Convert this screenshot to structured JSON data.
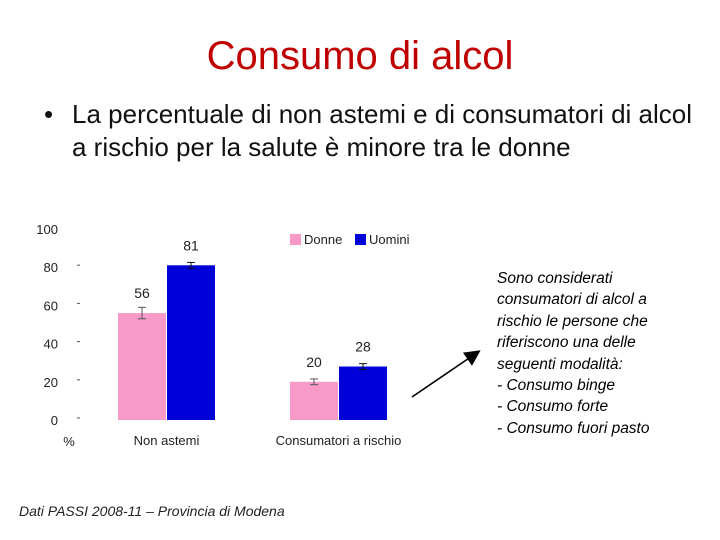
{
  "slide": {
    "title": "Consumo di alcol",
    "bullet_marker": "•",
    "bullet": "La percentuale di non astemi e di consumatori di alcol a rischio per la salute è minore tra le donne",
    "note_lines": [
      "Sono considerati",
      "consumatori di alcol a",
      "rischio le persone che",
      "riferiscono una delle",
      "seguenti modalità:",
      "- Consumo binge",
      "- Consumo forte",
      "- Consumo fuori pasto"
    ],
    "source": "Dati PASSI 2008-11 – Provincia di Modena"
  },
  "chart_data": {
    "type": "bar",
    "categories": [
      "Non astemi",
      "Consumatori a rischio"
    ],
    "series": [
      {
        "name": "Donne",
        "values": [
          56,
          20
        ],
        "errors": [
          3,
          1.5
        ],
        "color": "#f79ac7"
      },
      {
        "name": "Uomini",
        "values": [
          81,
          28
        ],
        "errors": [
          1.5,
          1.5
        ],
        "color": "#0000d8"
      }
    ],
    "data_labels": [
      "56",
      "20",
      "81",
      "28"
    ],
    "y_ticks": [
      "0",
      "20",
      "40",
      "60",
      "80",
      "100"
    ],
    "ylabel": "%",
    "ylim": [
      0,
      100
    ],
    "legend_position": "top-right",
    "grid": false
  }
}
